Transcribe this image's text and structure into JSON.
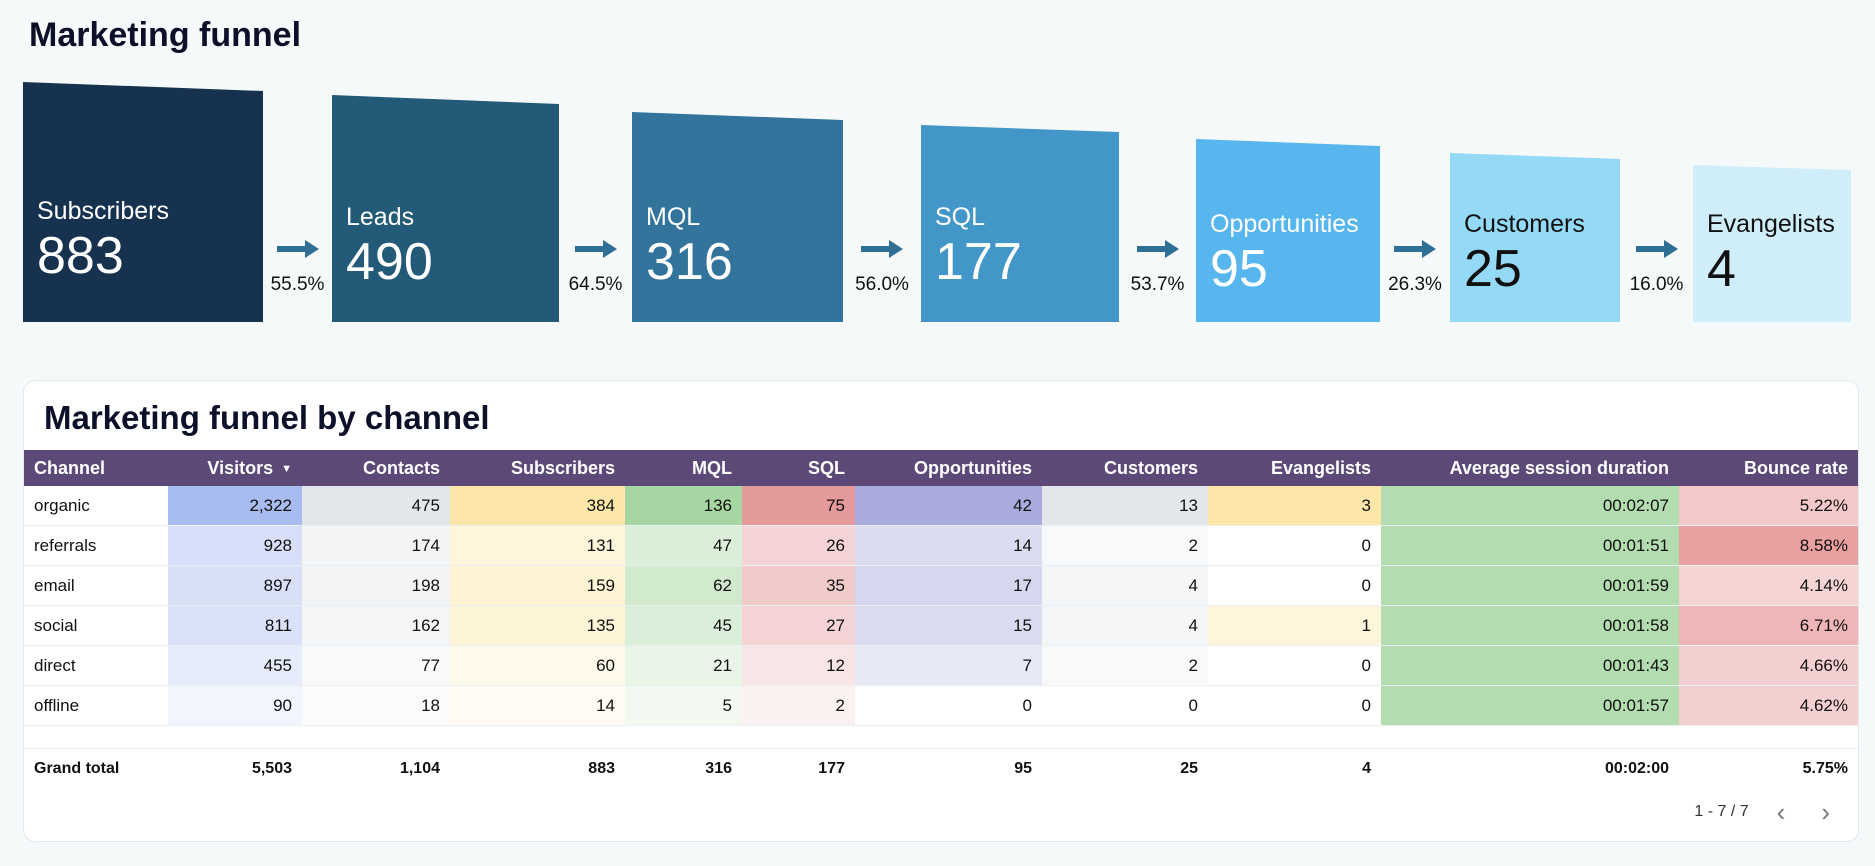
{
  "page_title": "Marketing funnel",
  "chart_data": {
    "type": "bar",
    "title": "Marketing funnel",
    "categories": [
      "Subscribers",
      "Leads",
      "MQL",
      "SQL",
      "Opportunities",
      "Customers",
      "Evangelists"
    ],
    "values": [
      883,
      490,
      316,
      177,
      95,
      25,
      4
    ],
    "conversion_rates": [
      "55.5%",
      "64.5%",
      "56.0%",
      "53.7%",
      "26.3%",
      "16.0%"
    ],
    "colors": [
      "#17324f",
      "#225a78",
      "#32749b",
      "#4396c8",
      "#57b6ee",
      "#94d9f6",
      "#d0eefa"
    ]
  },
  "table": {
    "title": "Marketing funnel by channel",
    "columns": [
      "Channel",
      "Visitors",
      "Contacts",
      "Subscribers",
      "MQL",
      "SQL",
      "Opportunities",
      "Customers",
      "Evangelists",
      "Average session duration",
      "Bounce rate"
    ],
    "rows": [
      [
        "organic",
        "2,322",
        "475",
        "384",
        "136",
        "75",
        "42",
        "13",
        "3",
        "00:02:07",
        "5.22%"
      ],
      [
        "referrals",
        "928",
        "174",
        "131",
        "47",
        "26",
        "14",
        "2",
        "0",
        "00:01:51",
        "8.58%"
      ],
      [
        "email",
        "897",
        "198",
        "159",
        "62",
        "35",
        "17",
        "4",
        "0",
        "00:01:59",
        "4.14%"
      ],
      [
        "social",
        "811",
        "162",
        "135",
        "45",
        "27",
        "15",
        "4",
        "1",
        "00:01:58",
        "6.71%"
      ],
      [
        "direct",
        "455",
        "77",
        "60",
        "21",
        "12",
        "7",
        "2",
        "0",
        "00:01:43",
        "4.66%"
      ],
      [
        "offline",
        "90",
        "18",
        "14",
        "5",
        "2",
        "0",
        "0",
        "0",
        "00:01:57",
        "4.62%"
      ]
    ],
    "total": [
      "Grand total",
      "5,503",
      "1,104",
      "883",
      "316",
      "177",
      "95",
      "25",
      "4",
      "00:02:00",
      "5.75%"
    ],
    "heat_colors": [
      "",
      "#a9bcf0",
      "#e3e6ea",
      "#fde7a8",
      "#a6d7a2",
      "#e49a9a",
      "#a8abdb",
      "#e3e6ea",
      "#fde7a8",
      "#a6d7a2",
      "#e9a0a0"
    ],
    "pagination": "1 - 7 / 7",
    "header_bg": "#5d4978"
  }
}
